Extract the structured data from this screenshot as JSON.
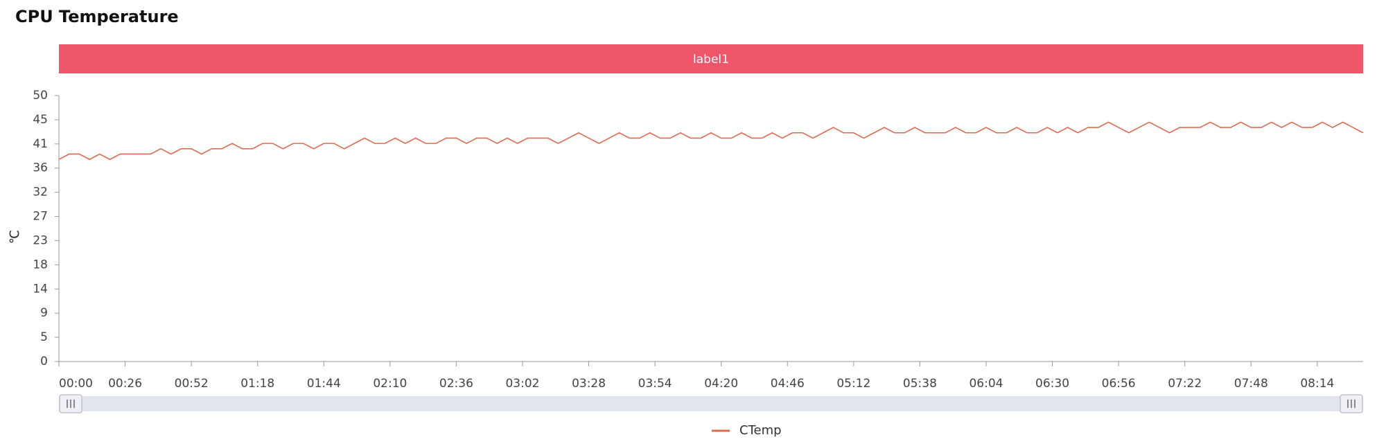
{
  "chart_data": {
    "type": "line",
    "title": "CPU Temperature",
    "banner": "label1",
    "y_label": "℃",
    "x": [
      0,
      4,
      8,
      12,
      16,
      20,
      24,
      28,
      32,
      36,
      40,
      44,
      48,
      52,
      56,
      60,
      64,
      68,
      72,
      76,
      80,
      84,
      88,
      92,
      96,
      100,
      104,
      108,
      112,
      116,
      120,
      124,
      128,
      132,
      136,
      140,
      144,
      148,
      152,
      156,
      160,
      164,
      168,
      172,
      176,
      180,
      184,
      188,
      192,
      196,
      200,
      204,
      208,
      212,
      216,
      220,
      224,
      228,
      232,
      236,
      240,
      244,
      248,
      252,
      256,
      260,
      264,
      268,
      272,
      276,
      280,
      284,
      288,
      292,
      296,
      300,
      304,
      308,
      312,
      316,
      320,
      324,
      328,
      332,
      336,
      340,
      344,
      348,
      352,
      356,
      360,
      364,
      368,
      372,
      376,
      380,
      384,
      388,
      392,
      396,
      400,
      404,
      408,
      412,
      416,
      420,
      424,
      428,
      432,
      436,
      440,
      444,
      448,
      452,
      456,
      460,
      464,
      468,
      472,
      476,
      480,
      484,
      488,
      492,
      496,
      500,
      504,
      508,
      512
    ],
    "series": [
      {
        "name": "CTemp",
        "color": "#e0694f",
        "values": [
          38,
          39,
          39,
          38,
          39,
          38,
          39,
          39,
          39,
          39,
          40,
          39,
          40,
          40,
          39,
          40,
          40,
          41,
          40,
          40,
          41,
          41,
          40,
          41,
          41,
          40,
          41,
          41,
          40,
          41,
          42,
          41,
          41,
          42,
          41,
          42,
          41,
          41,
          42,
          42,
          41,
          42,
          42,
          41,
          42,
          41,
          42,
          42,
          42,
          41,
          42,
          43,
          42,
          41,
          42,
          43,
          42,
          42,
          43,
          42,
          42,
          43,
          42,
          42,
          43,
          42,
          42,
          43,
          42,
          42,
          43,
          42,
          43,
          43,
          42,
          43,
          44,
          43,
          43,
          42,
          43,
          44,
          43,
          43,
          44,
          43,
          43,
          43,
          44,
          43,
          43,
          44,
          43,
          43,
          44,
          43,
          43,
          44,
          43,
          44,
          43,
          44,
          44,
          45,
          44,
          43,
          44,
          45,
          44,
          43,
          44,
          44,
          44,
          45,
          44,
          44,
          45,
          44,
          44,
          45,
          44,
          45,
          44,
          44,
          45,
          44,
          45,
          44,
          43
        ]
      }
    ],
    "xlim": [
      0,
      512
    ],
    "xticks": [
      {
        "value": 0,
        "label": "00:00"
      },
      {
        "value": 26,
        "label": "00:26"
      },
      {
        "value": 52,
        "label": "00:52"
      },
      {
        "value": 78,
        "label": "01:18"
      },
      {
        "value": 104,
        "label": "01:44"
      },
      {
        "value": 130,
        "label": "02:10"
      },
      {
        "value": 156,
        "label": "02:36"
      },
      {
        "value": 182,
        "label": "03:02"
      },
      {
        "value": 208,
        "label": "03:28"
      },
      {
        "value": 234,
        "label": "03:54"
      },
      {
        "value": 260,
        "label": "04:20"
      },
      {
        "value": 286,
        "label": "04:46"
      },
      {
        "value": 312,
        "label": "05:12"
      },
      {
        "value": 338,
        "label": "05:38"
      },
      {
        "value": 364,
        "label": "06:04"
      },
      {
        "value": 390,
        "label": "06:30"
      },
      {
        "value": 416,
        "label": "06:56"
      },
      {
        "value": 442,
        "label": "07:22"
      },
      {
        "value": 468,
        "label": "07:48"
      },
      {
        "value": 494,
        "label": "08:14"
      }
    ],
    "ylim": [
      0,
      50
    ],
    "yticks": [
      0,
      {
        "value": 4.545,
        "label": "5"
      },
      {
        "value": 9.091,
        "label": "9"
      },
      {
        "value": 13.636,
        "label": "14"
      },
      {
        "value": 18.182,
        "label": "18"
      },
      {
        "value": 22.727,
        "label": "23"
      },
      {
        "value": 27.273,
        "label": "27"
      },
      {
        "value": 31.818,
        "label": "32"
      },
      {
        "value": 36.364,
        "label": "36"
      },
      {
        "value": 40.909,
        "label": "41"
      },
      {
        "value": 45.455,
        "label": "45"
      },
      50
    ],
    "legend": "bottom"
  }
}
